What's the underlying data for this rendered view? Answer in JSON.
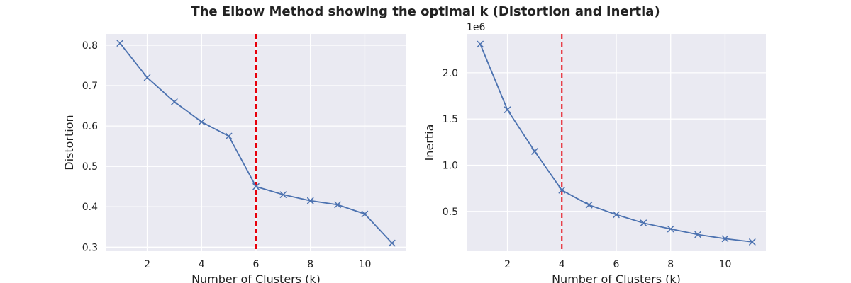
{
  "figure": {
    "title": "The Elbow Method showing the optimal k (Distortion and Inertia)"
  },
  "colors": {
    "series": "#4C72B0",
    "optimal_line": "#E8000B",
    "plot_background": "#EAEAF2",
    "grid": "#FFFFFF"
  },
  "chart_data": [
    {
      "type": "line",
      "marker": "x",
      "xlabel": "Number of Clusters (k)",
      "ylabel": "Distortion",
      "x": [
        1,
        2,
        3,
        4,
        5,
        6,
        7,
        8,
        9,
        10,
        11
      ],
      "values": [
        0.805,
        0.72,
        0.66,
        0.61,
        0.575,
        0.45,
        0.43,
        0.415,
        0.405,
        0.382,
        0.31
      ],
      "xlim": [
        0.5,
        11.5
      ],
      "ylim": [
        0.29,
        0.828
      ],
      "xticks": [
        2,
        4,
        6,
        8,
        10
      ],
      "yticks": [
        0.3,
        0.4,
        0.5,
        0.6,
        0.7,
        0.8
      ],
      "ytick_labels": [
        "0.3",
        "0.4",
        "0.5",
        "0.6",
        "0.7",
        "0.8"
      ],
      "offset_text": "",
      "optimal_k": 6,
      "grid": true
    },
    {
      "type": "line",
      "marker": "x",
      "xlabel": "Number of Clusters (k)",
      "ylabel": "Inertia",
      "x": [
        1,
        2,
        3,
        4,
        5,
        6,
        7,
        8,
        9,
        10,
        11
      ],
      "values": [
        2310000,
        1600000,
        1150000,
        730000,
        570000,
        465000,
        375000,
        310000,
        250000,
        205000,
        170000
      ],
      "xlim": [
        0.5,
        11.5
      ],
      "ylim": [
        70000,
        2420000
      ],
      "xticks": [
        2,
        4,
        6,
        8,
        10
      ],
      "yticks": [
        500000,
        1000000,
        1500000,
        2000000
      ],
      "ytick_labels": [
        "0.5",
        "1.0",
        "1.5",
        "2.0"
      ],
      "offset_text": "1e6",
      "optimal_k": 4,
      "grid": true
    }
  ]
}
